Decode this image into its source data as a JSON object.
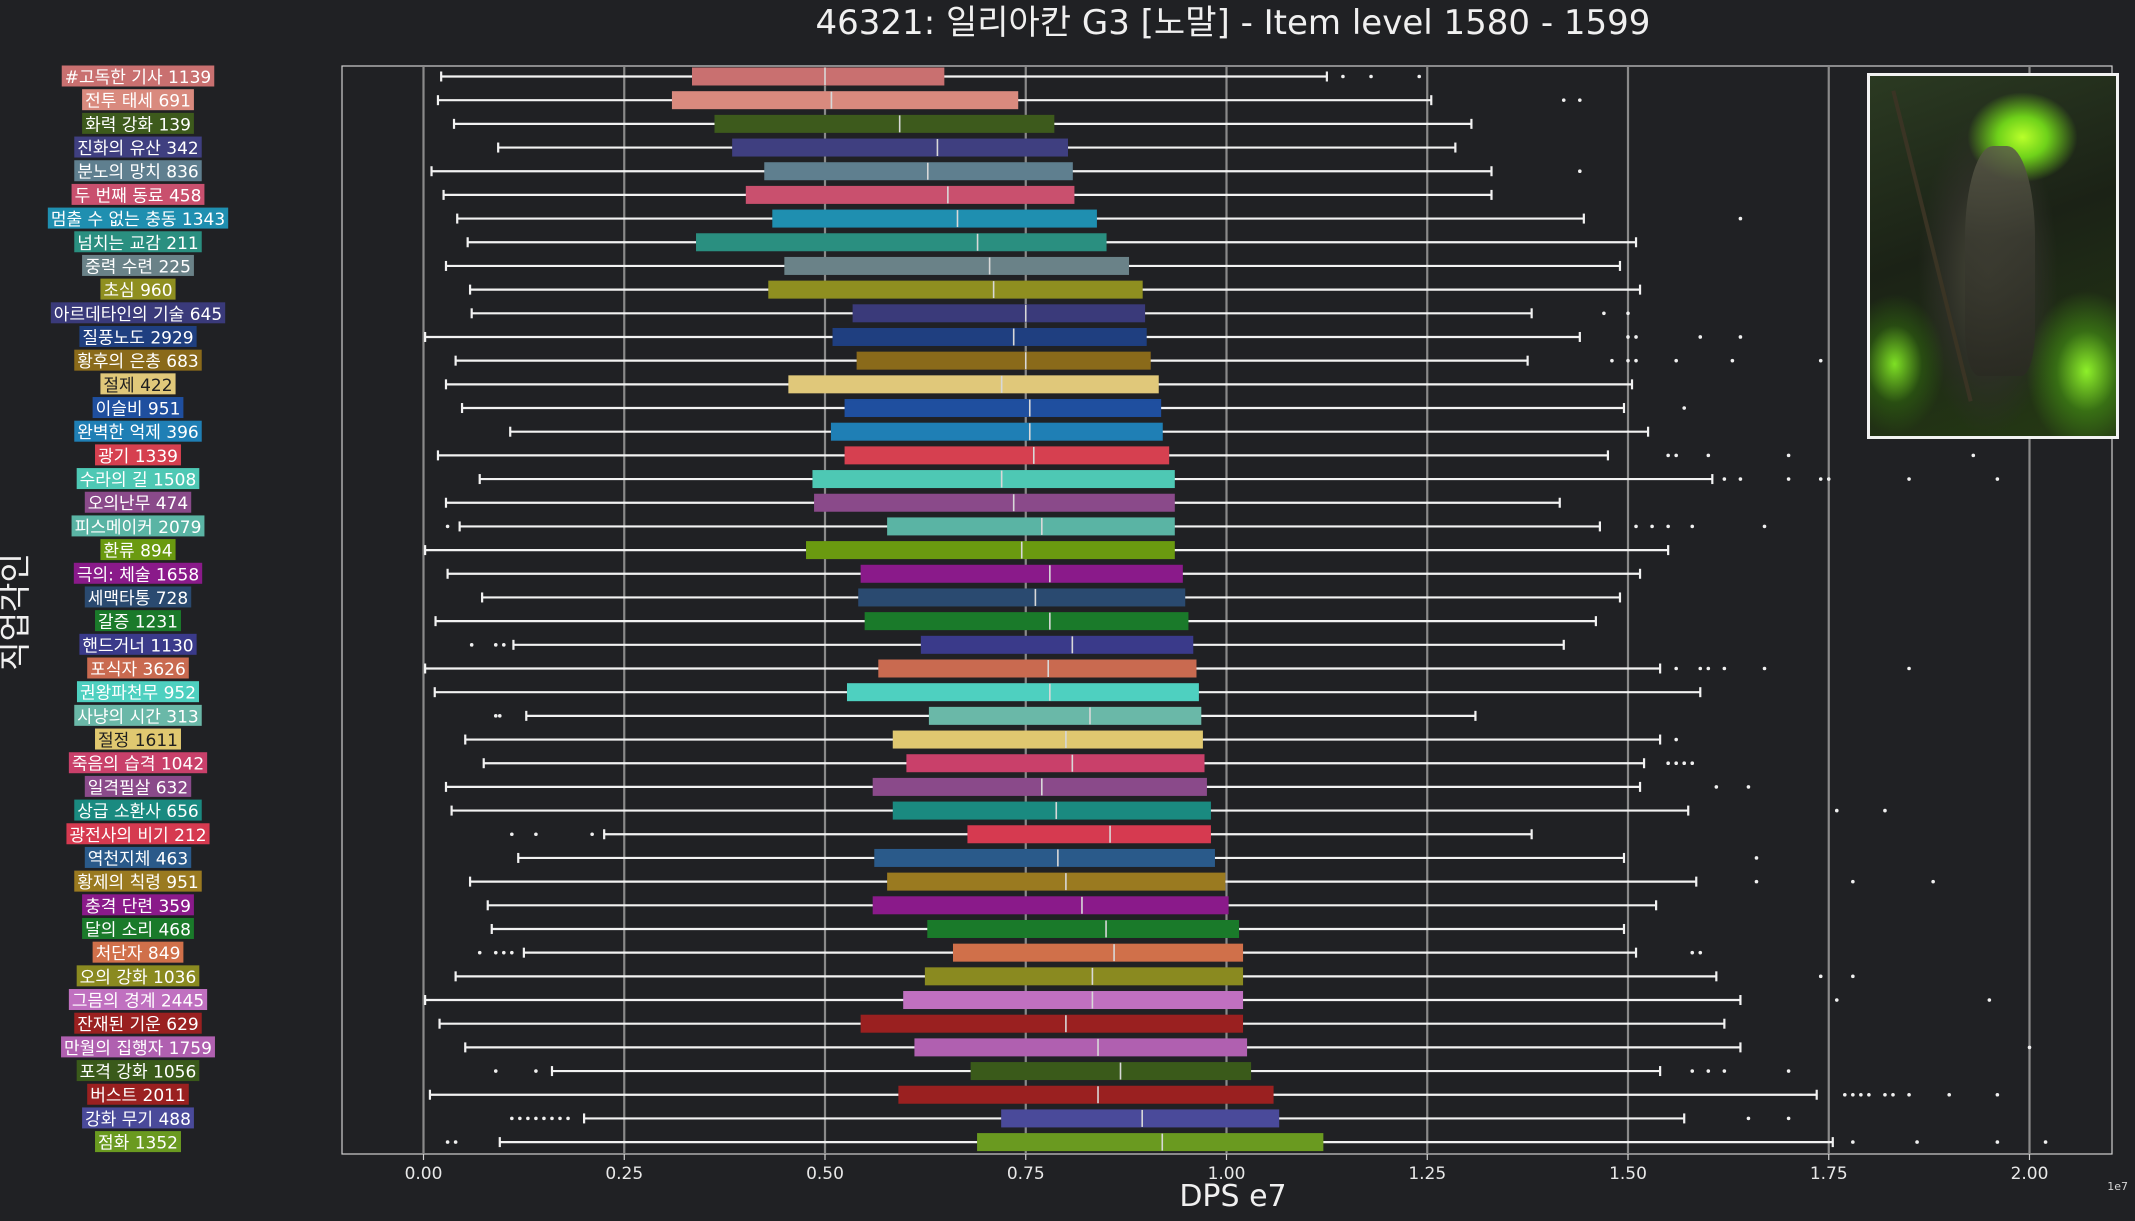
{
  "chart_data": {
    "type": "box",
    "orientation": "horizontal",
    "title": "46321: 일리아칸 G3 [노말] - Item level 1580 - 1599",
    "xlabel": "DPS e7",
    "ylabel": "직업각인",
    "x_offset_label": "1e7",
    "xlim": [
      -0.1,
      2.13
    ],
    "xticks": [
      0.0,
      0.25,
      0.5,
      0.75,
      1.0,
      1.25,
      1.5,
      1.75,
      2.0
    ],
    "xtick_labels": [
      "0.00",
      "0.25",
      "0.50",
      "0.75",
      "1.00",
      "1.25",
      "1.50",
      "1.75",
      "2.00"
    ],
    "grid": "vertical",
    "categories": [
      {
        "label": "#고독한 기사 1139",
        "color": "#c97070",
        "whislo": 0.022,
        "q1": 0.335,
        "med": 0.5,
        "q3": 0.648,
        "whishi": 1.125,
        "fliers": [
          1.145,
          1.18,
          1.24
        ]
      },
      {
        "label": "전투 태세 691",
        "color": "#d98a7e",
        "whislo": 0.018,
        "q1": 0.31,
        "med": 0.508,
        "q3": 0.74,
        "whishi": 1.255,
        "fliers": [
          1.42,
          1.44
        ]
      },
      {
        "label": "화력 강화 139",
        "color": "#3d5a1c",
        "whislo": 0.038,
        "q1": 0.363,
        "med": 0.593,
        "q3": 0.785,
        "whishi": 1.305,
        "fliers": []
      },
      {
        "label": "진화의 유산 342",
        "color": "#3f3f80",
        "whislo": 0.093,
        "q1": 0.385,
        "med": 0.64,
        "q3": 0.802,
        "whishi": 1.285,
        "fliers": []
      },
      {
        "label": "분노의 망치 836",
        "color": "#5f7f8f",
        "whislo": 0.01,
        "q1": 0.425,
        "med": 0.628,
        "q3": 0.808,
        "whishi": 1.33,
        "fliers": [
          1.44
        ]
      },
      {
        "label": "두 번째 동료 458",
        "color": "#c9506e",
        "whislo": 0.025,
        "q1": 0.402,
        "med": 0.653,
        "q3": 0.81,
        "whishi": 1.33,
        "fliers": []
      },
      {
        "label": "멈출 수 없는 충동 1343",
        "color": "#1f8fb0",
        "whislo": 0.042,
        "q1": 0.435,
        "med": 0.665,
        "q3": 0.838,
        "whishi": 1.445,
        "fliers": [
          1.64
        ]
      },
      {
        "label": "넘치는 교감 211",
        "color": "#2a8f80",
        "whislo": 0.055,
        "q1": 0.34,
        "med": 0.69,
        "q3": 0.85,
        "whishi": 1.51,
        "fliers": []
      },
      {
        "label": "중력 수련 225",
        "color": "#6a8288",
        "whislo": 0.028,
        "q1": 0.45,
        "med": 0.705,
        "q3": 0.878,
        "whishi": 1.49,
        "fliers": []
      },
      {
        "label": "초심 960",
        "color": "#8f8f20",
        "whislo": 0.058,
        "q1": 0.43,
        "med": 0.71,
        "q3": 0.895,
        "whishi": 1.515,
        "fliers": []
      },
      {
        "label": "아르데타인의 기술 645",
        "color": "#3a3a7a",
        "whislo": 0.06,
        "q1": 0.535,
        "med": 0.75,
        "q3": 0.898,
        "whishi": 1.38,
        "fliers": [
          1.47,
          1.5
        ]
      },
      {
        "label": "질풍노도 2929",
        "color": "#1f3f80",
        "whislo": 0.002,
        "q1": 0.51,
        "med": 0.735,
        "q3": 0.9,
        "whishi": 1.44,
        "fliers": [
          1.5,
          1.51,
          1.59,
          1.64
        ]
      },
      {
        "label": "황후의 은총 683",
        "color": "#8a6a1a",
        "whislo": 0.04,
        "q1": 0.54,
        "med": 0.75,
        "q3": 0.905,
        "whishi": 1.375,
        "fliers": [
          1.48,
          1.5,
          1.51,
          1.56,
          1.63,
          1.74
        ]
      },
      {
        "label": "절제 422",
        "color": "#e0c87a",
        "whislo": 0.028,
        "q1": 0.455,
        "med": 0.72,
        "q3": 0.915,
        "whishi": 1.505,
        "fliers": []
      },
      {
        "label": "이슬비 951",
        "color": "#1f4f9f",
        "whislo": 0.048,
        "q1": 0.525,
        "med": 0.755,
        "q3": 0.918,
        "whishi": 1.495,
        "fliers": [
          1.57
        ]
      },
      {
        "label": "완벽한 억제 396",
        "color": "#1f7fb5",
        "whislo": 0.108,
        "q1": 0.508,
        "med": 0.755,
        "q3": 0.92,
        "whishi": 1.525,
        "fliers": []
      },
      {
        "label": "광기 1339",
        "color": "#d64050",
        "whislo": 0.018,
        "q1": 0.525,
        "med": 0.76,
        "q3": 0.928,
        "whishi": 1.475,
        "fliers": [
          1.55,
          1.56,
          1.6,
          1.7,
          1.93
        ]
      },
      {
        "label": "수라의 길 1508",
        "color": "#4ec8b4",
        "whislo": 0.07,
        "q1": 0.485,
        "med": 0.72,
        "q3": 0.935,
        "whishi": 1.605,
        "fliers": [
          1.62,
          1.64,
          1.7,
          1.74,
          1.75,
          1.85,
          1.96
        ]
      },
      {
        "label": "오의난무 474",
        "color": "#8a4a8a",
        "whislo": 0.028,
        "q1": 0.487,
        "med": 0.735,
        "q3": 0.935,
        "whishi": 1.415,
        "fliers": []
      },
      {
        "label": "피스메이커 2079",
        "color": "#5ab4a4",
        "whislo": 0.045,
        "q1": 0.578,
        "med": 0.77,
        "q3": 0.935,
        "whishi": 1.465,
        "fliers": [
          0.03,
          1.51,
          1.53,
          1.55,
          1.58,
          1.67
        ]
      },
      {
        "label": "환류 894",
        "color": "#6a9a10",
        "whislo": 0.002,
        "q1": 0.477,
        "med": 0.745,
        "q3": 0.935,
        "whishi": 1.55,
        "fliers": []
      },
      {
        "label": "극의: 체술 1658",
        "color": "#8a1a8a",
        "whislo": 0.03,
        "q1": 0.545,
        "med": 0.78,
        "q3": 0.945,
        "whishi": 1.515,
        "fliers": []
      },
      {
        "label": "세맥타통 728",
        "color": "#2a4a70",
        "whislo": 0.073,
        "q1": 0.542,
        "med": 0.762,
        "q3": 0.948,
        "whishi": 1.49,
        "fliers": []
      },
      {
        "label": "갈증 1231",
        "color": "#1a7a2a",
        "whislo": 0.015,
        "q1": 0.55,
        "med": 0.78,
        "q3": 0.952,
        "whishi": 1.46,
        "fliers": []
      },
      {
        "label": "핸드거너 1130",
        "color": "#3a3a8a",
        "whislo": 0.112,
        "q1": 0.62,
        "med": 0.808,
        "q3": 0.958,
        "whishi": 1.42,
        "fliers": [
          0.06,
          0.09,
          0.1
        ]
      },
      {
        "label": "포식자 3626",
        "color": "#c96a50",
        "whislo": 0.002,
        "q1": 0.567,
        "med": 0.778,
        "q3": 0.962,
        "whishi": 1.54,
        "fliers": [
          1.56,
          1.59,
          1.6,
          1.62,
          1.67,
          1.85
        ]
      },
      {
        "label": "권왕파천무 952",
        "color": "#4ed0c0",
        "whislo": 0.014,
        "q1": 0.528,
        "med": 0.78,
        "q3": 0.965,
        "whishi": 1.59,
        "fliers": []
      },
      {
        "label": "사냥의 시간 313",
        "color": "#6ab8a8",
        "whislo": 0.128,
        "q1": 0.63,
        "med": 0.83,
        "q3": 0.968,
        "whishi": 1.31,
        "fliers": [
          0.09,
          0.095
        ]
      },
      {
        "label": "절정 1611",
        "color": "#e0c870",
        "whislo": 0.052,
        "q1": 0.585,
        "med": 0.8,
        "q3": 0.97,
        "whishi": 1.54,
        "fliers": [
          1.56
        ]
      },
      {
        "label": "죽음의 습격 1042",
        "color": "#c9406a",
        "whislo": 0.075,
        "q1": 0.602,
        "med": 0.808,
        "q3": 0.972,
        "whishi": 1.52,
        "fliers": [
          1.55,
          1.56,
          1.57,
          1.58
        ]
      },
      {
        "label": "일격필살 632",
        "color": "#8a4a8a",
        "whislo": 0.028,
        "q1": 0.56,
        "med": 0.77,
        "q3": 0.975,
        "whishi": 1.515,
        "fliers": [
          1.61,
          1.65
        ]
      },
      {
        "label": "상급 소환사 656",
        "color": "#1a8a80",
        "whislo": 0.035,
        "q1": 0.585,
        "med": 0.788,
        "q3": 0.98,
        "whishi": 1.575,
        "fliers": [
          1.76,
          1.82
        ]
      },
      {
        "label": "광전사의 비기 212",
        "color": "#d63a50",
        "whislo": 0.225,
        "q1": 0.678,
        "med": 0.855,
        "q3": 0.98,
        "whishi": 1.38,
        "fliers": [
          0.11,
          0.14,
          0.21
        ]
      },
      {
        "label": "역천지체 463",
        "color": "#2a5a8a",
        "whislo": 0.118,
        "q1": 0.562,
        "med": 0.79,
        "q3": 0.985,
        "whishi": 1.495,
        "fliers": [
          1.66
        ]
      },
      {
        "label": "황제의 칙령 951",
        "color": "#9a7a20",
        "whislo": 0.058,
        "q1": 0.578,
        "med": 0.8,
        "q3": 0.998,
        "whishi": 1.585,
        "fliers": [
          1.66,
          1.78,
          1.88
        ]
      },
      {
        "label": "충격 단련 359",
        "color": "#8a1a8a",
        "whislo": 0.08,
        "q1": 0.56,
        "med": 0.82,
        "q3": 1.002,
        "whishi": 1.535,
        "fliers": []
      },
      {
        "label": "달의 소리 468",
        "color": "#1a7a2a",
        "whislo": 0.085,
        "q1": 0.628,
        "med": 0.85,
        "q3": 1.015,
        "whishi": 1.495,
        "fliers": []
      },
      {
        "label": "처단자 849",
        "color": "#d0704a",
        "whislo": 0.125,
        "q1": 0.66,
        "med": 0.86,
        "q3": 1.02,
        "whishi": 1.51,
        "fliers": [
          0.07,
          0.09,
          0.1,
          0.11,
          1.58,
          1.59
        ]
      },
      {
        "label": "오의 강화 1036",
        "color": "#8a8a20",
        "whislo": 0.04,
        "q1": 0.625,
        "med": 0.833,
        "q3": 1.02,
        "whishi": 1.61,
        "fliers": [
          1.74,
          1.78
        ]
      },
      {
        "label": "그믐의 경계 2445",
        "color": "#c070c0",
        "whislo": 0.002,
        "q1": 0.598,
        "med": 0.833,
        "q3": 1.02,
        "whishi": 1.64,
        "fliers": [
          1.76,
          1.95
        ]
      },
      {
        "label": "잔재된 기운 629",
        "color": "#9a2020",
        "whislo": 0.02,
        "q1": 0.545,
        "med": 0.8,
        "q3": 1.02,
        "whishi": 1.62,
        "fliers": []
      },
      {
        "label": "만월의 집행자 1759",
        "color": "#b060b0",
        "whislo": 0.052,
        "q1": 0.612,
        "med": 0.84,
        "q3": 1.025,
        "whishi": 1.64,
        "fliers": [
          2.0
        ]
      },
      {
        "label": "포격 강화 1056",
        "color": "#3a5a1a",
        "whislo": 0.16,
        "q1": 0.682,
        "med": 0.868,
        "q3": 1.03,
        "whishi": 1.54,
        "fliers": [
          0.09,
          0.14,
          1.58,
          1.6,
          1.62,
          1.7
        ]
      },
      {
        "label": "버스트 2011",
        "color": "#9a2020",
        "whislo": 0.008,
        "q1": 0.592,
        "med": 0.84,
        "q3": 1.058,
        "whishi": 1.735,
        "fliers": [
          1.77,
          1.78,
          1.79,
          1.8,
          1.82,
          1.83,
          1.85,
          1.9,
          1.96
        ]
      },
      {
        "label": "강화 무기 488",
        "color": "#4a4a9a",
        "whislo": 0.2,
        "q1": 0.72,
        "med": 0.895,
        "q3": 1.065,
        "whishi": 1.57,
        "fliers": [
          0.11,
          0.12,
          0.13,
          0.14,
          0.15,
          0.16,
          0.17,
          0.18,
          1.65,
          1.7
        ]
      },
      {
        "label": "점화 1352",
        "color": "#6a9a20",
        "whislo": 0.095,
        "q1": 0.69,
        "med": 0.92,
        "q3": 1.12,
        "whishi": 1.755,
        "fliers": [
          0.03,
          0.04,
          1.78,
          1.86,
          1.96,
          2.02
        ]
      }
    ]
  }
}
